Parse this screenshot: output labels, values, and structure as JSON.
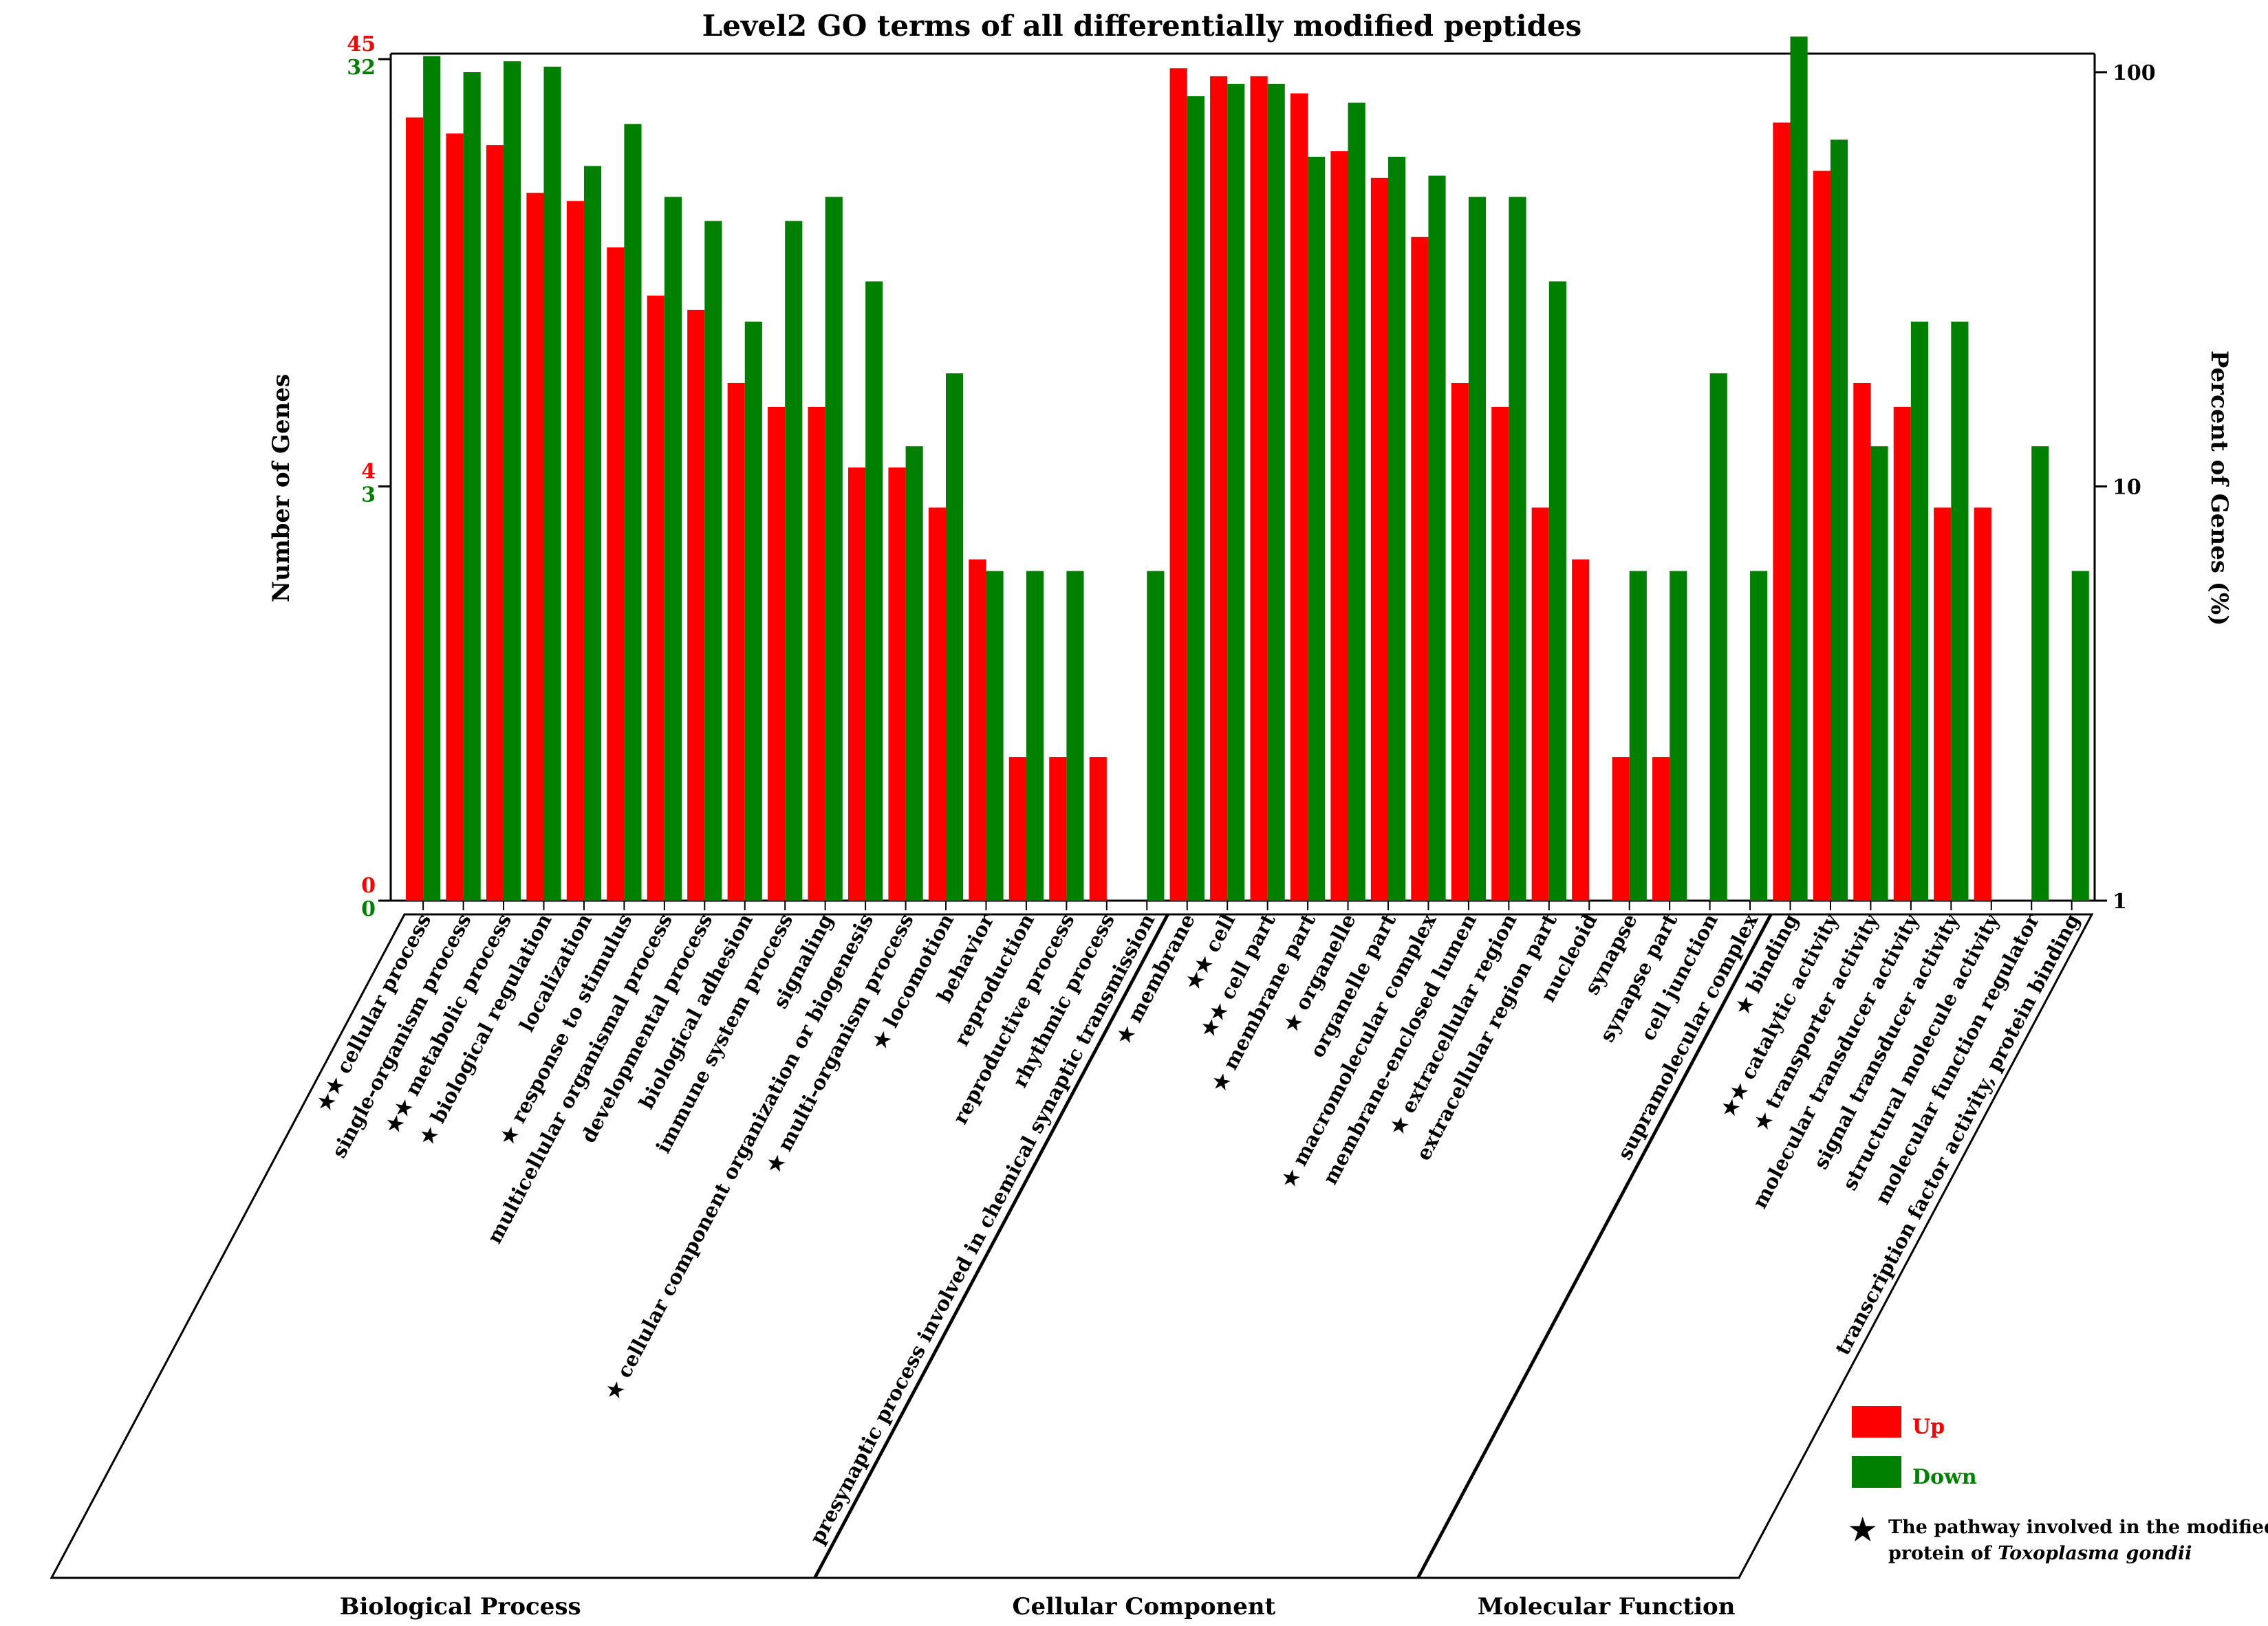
{
  "chart_data": {
    "type": "bar",
    "title": "Level2 GO terms of all differentially modified peptides",
    "ylabel_left": "Number of Genes",
    "ylabel_right": "Percent of Genes (%)",
    "yscale": "log",
    "left_axis_up_ticks": [
      "45",
      "4",
      "0"
    ],
    "left_axis_down_ticks": [
      "32",
      "3",
      "0"
    ],
    "right_axis_ticks": [
      "100",
      "10",
      "1"
    ],
    "percent_range": [
      1,
      100
    ],
    "colors": {
      "up": "#ff0000",
      "down": "#008000"
    },
    "categories": [
      {
        "label": "cellular process",
        "star": 2,
        "group": "Biological Process",
        "up": 35,
        "down": 35
      },
      {
        "label": "single-organism process",
        "star": 0,
        "group": "Biological Process",
        "up": 32,
        "down": 32
      },
      {
        "label": "metabolic process",
        "star": 2,
        "group": "Biological Process",
        "up": 30,
        "down": 34
      },
      {
        "label": "biological regulation",
        "star": 1,
        "group": "Biological Process",
        "up": 23,
        "down": 33
      },
      {
        "label": "localization",
        "star": 0,
        "group": "Biological Process",
        "up": 22,
        "down": 19
      },
      {
        "label": "response to stimulus",
        "star": 1,
        "group": "Biological Process",
        "up": 17,
        "down": 24
      },
      {
        "label": "multicellular organismal process",
        "star": 0,
        "group": "Biological Process",
        "up": 13,
        "down": 16
      },
      {
        "label": "developmental process",
        "star": 0,
        "group": "Biological Process",
        "up": 12,
        "down": 14
      },
      {
        "label": "biological adhesion",
        "star": 0,
        "group": "Biological Process",
        "up": 8,
        "down": 8
      },
      {
        "label": "immune system process",
        "star": 0,
        "group": "Biological Process",
        "up": 7,
        "down": 14
      },
      {
        "label": "signaling",
        "star": 0,
        "group": "Biological Process",
        "up": 7,
        "down": 16
      },
      {
        "label": "cellular component organization or biogenesis",
        "star": 1,
        "group": "Biological Process",
        "up": 5,
        "down": 10
      },
      {
        "label": "multi-organism process",
        "star": 1,
        "group": "Biological Process",
        "up": 5,
        "down": 4
      },
      {
        "label": "locomotion",
        "star": 1,
        "group": "Biological Process",
        "up": 4,
        "down": 6
      },
      {
        "label": "behavior",
        "star": 0,
        "group": "Biological Process",
        "up": 3,
        "down": 2
      },
      {
        "label": "reproduction",
        "star": 0,
        "group": "Biological Process",
        "up": 1,
        "down": 2
      },
      {
        "label": "reproductive process",
        "star": 0,
        "group": "Biological Process",
        "up": 1,
        "down": 2
      },
      {
        "label": "rhythmic process",
        "star": 0,
        "group": "Biological Process",
        "up": 1,
        "down": null
      },
      {
        "label": "presynaptic process involved in chemical synaptic transmission",
        "star": 0,
        "group": "Biological Process",
        "up": null,
        "down": 2
      },
      {
        "label": "membrane",
        "star": 1,
        "group": "Cellular Component",
        "up": 46,
        "down": 28
      },
      {
        "label": "cell",
        "star": 2,
        "group": "Cellular Component",
        "up": 44,
        "down": 30
      },
      {
        "label": "cell part",
        "star": 2,
        "group": "Cellular Component",
        "up": 44,
        "down": 30
      },
      {
        "label": "membrane part",
        "star": 1,
        "group": "Cellular Component",
        "up": 40,
        "down": 20
      },
      {
        "label": "organelle",
        "star": 1,
        "group": "Cellular Component",
        "up": 29,
        "down": 27
      },
      {
        "label": "organelle part",
        "star": 0,
        "group": "Cellular Component",
        "up": 25,
        "down": 20
      },
      {
        "label": "macromolecular complex",
        "star": 1,
        "group": "Cellular Component",
        "up": 18,
        "down": 18
      },
      {
        "label": "membrane-enclosed lumen",
        "star": 0,
        "group": "Cellular Component",
        "up": 8,
        "down": 16
      },
      {
        "label": "extracellular region",
        "star": 1,
        "group": "Cellular Component",
        "up": 7,
        "down": 16
      },
      {
        "label": "extracellular region part",
        "star": 0,
        "group": "Cellular Component",
        "up": 4,
        "down": 10
      },
      {
        "label": "nucleoid",
        "star": 0,
        "group": "Cellular Component",
        "up": 3,
        "down": null
      },
      {
        "label": "synapse",
        "star": 0,
        "group": "Cellular Component",
        "up": 1,
        "down": 2
      },
      {
        "label": "synapse part",
        "star": 0,
        "group": "Cellular Component",
        "up": 1,
        "down": 2
      },
      {
        "label": "cell junction",
        "star": 0,
        "group": "Cellular Component",
        "up": null,
        "down": 6
      },
      {
        "label": "supramolecular complex",
        "star": 0,
        "group": "Cellular Component",
        "up": null,
        "down": 2
      },
      {
        "label": "binding",
        "star": 1,
        "group": "Molecular Function",
        "up": 34,
        "down": 39
      },
      {
        "label": "catalytic activity",
        "star": 2,
        "group": "Molecular Function",
        "up": 26,
        "down": 22
      },
      {
        "label": "transporter activity",
        "star": 1,
        "group": "Molecular Function",
        "up": 8,
        "down": 4
      },
      {
        "label": "molecular transducer activity",
        "star": 0,
        "group": "Molecular Function",
        "up": 7,
        "down": 8
      },
      {
        "label": "signal transducer activity",
        "star": 0,
        "group": "Molecular Function",
        "up": 4,
        "down": 8
      },
      {
        "label": "structural molecule activity",
        "star": 0,
        "group": "Molecular Function",
        "up": 4,
        "down": null
      },
      {
        "label": "molecular function regulator",
        "star": 0,
        "group": "Molecular Function",
        "up": null,
        "down": 4
      },
      {
        "label": "transcription factor activity, protein binding",
        "star": 0,
        "group": "Molecular Function",
        "up": null,
        "down": 2
      }
    ],
    "group_labels": [
      "Biological Process",
      "Cellular Component",
      "Molecular Function"
    ],
    "legend": [
      {
        "label": "Up",
        "color": "#ff0000"
      },
      {
        "label": "Down",
        "color": "#008000"
      }
    ],
    "note": {
      "symbol": "★",
      "line1": "The pathway involved in the modified",
      "line2_prefix": "protein of ",
      "line2_italic": "Toxoplasma gondii"
    }
  }
}
